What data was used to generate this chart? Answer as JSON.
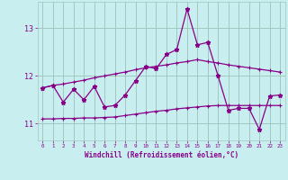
{
  "xlabel": "Windchill (Refroidissement éolien,°C)",
  "x": [
    0,
    1,
    2,
    3,
    4,
    5,
    6,
    7,
    8,
    9,
    10,
    11,
    12,
    13,
    14,
    15,
    16,
    17,
    18,
    19,
    20,
    21,
    22,
    23
  ],
  "y_main": [
    11.75,
    11.8,
    11.45,
    11.72,
    11.5,
    11.78,
    11.35,
    11.38,
    11.6,
    11.9,
    12.2,
    12.15,
    12.45,
    12.55,
    13.4,
    12.65,
    12.7,
    12.0,
    11.28,
    11.32,
    11.32,
    10.88,
    11.58,
    11.6
  ],
  "y_avg": [
    11.75,
    11.8,
    11.83,
    11.87,
    11.91,
    11.96,
    12.0,
    12.04,
    12.08,
    12.13,
    12.17,
    12.2,
    12.23,
    12.27,
    12.3,
    12.34,
    12.3,
    12.27,
    12.23,
    12.2,
    12.17,
    12.14,
    12.11,
    12.08
  ],
  "y_smooth": [
    11.1,
    11.1,
    11.11,
    11.11,
    11.12,
    11.12,
    11.13,
    11.14,
    11.17,
    11.2,
    11.23,
    11.26,
    11.28,
    11.31,
    11.33,
    11.35,
    11.37,
    11.38,
    11.38,
    11.38,
    11.38,
    11.38,
    11.38,
    11.38
  ],
  "bg_color": "#c8eef0",
  "grid_color": "#a0c8c0",
  "line_color": "#880088",
  "ylim_min": 10.65,
  "ylim_max": 13.55,
  "yticks": [
    11,
    12,
    13
  ],
  "xticks": [
    0,
    1,
    2,
    3,
    4,
    5,
    6,
    7,
    8,
    9,
    10,
    11,
    12,
    13,
    14,
    15,
    16,
    17,
    18,
    19,
    20,
    21,
    22,
    23
  ]
}
